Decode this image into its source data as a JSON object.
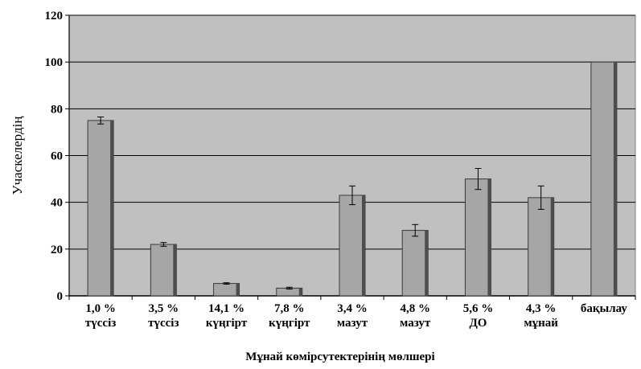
{
  "chart_data": {
    "type": "bar",
    "categories": [
      [
        "1,0 %",
        "түссіз"
      ],
      [
        "3,5 %",
        "түссіз"
      ],
      [
        "14,1 %",
        "күңгірт"
      ],
      [
        "7,8 %",
        "күңгірт"
      ],
      [
        "3,4 %",
        "мазут"
      ],
      [
        "4,8 %",
        "мазут"
      ],
      [
        "5,6 %",
        "ДО"
      ],
      [
        "4,3 %",
        "мұнай"
      ],
      [
        "бақылау",
        ""
      ]
    ],
    "values": [
      75,
      22,
      5.3,
      3.3,
      43,
      28,
      50,
      42,
      100
    ],
    "errors": [
      1.5,
      0.8,
      0.3,
      0.4,
      4.0,
      2.5,
      4.5,
      5.0,
      0
    ],
    "ylim": [
      0,
      120
    ],
    "yticks": [
      0,
      20,
      40,
      60,
      80,
      100,
      120
    ],
    "ylabel": "Учаскелердің",
    "xlabel": "Мұнай көмірсутектерінің мөлшері",
    "grid": true,
    "colors": {
      "bar_fill": "#a6a6a6",
      "bar_shade": "#4d4d4d",
      "plot_bg": "#c0c0c0",
      "gridline": "#000000"
    }
  }
}
